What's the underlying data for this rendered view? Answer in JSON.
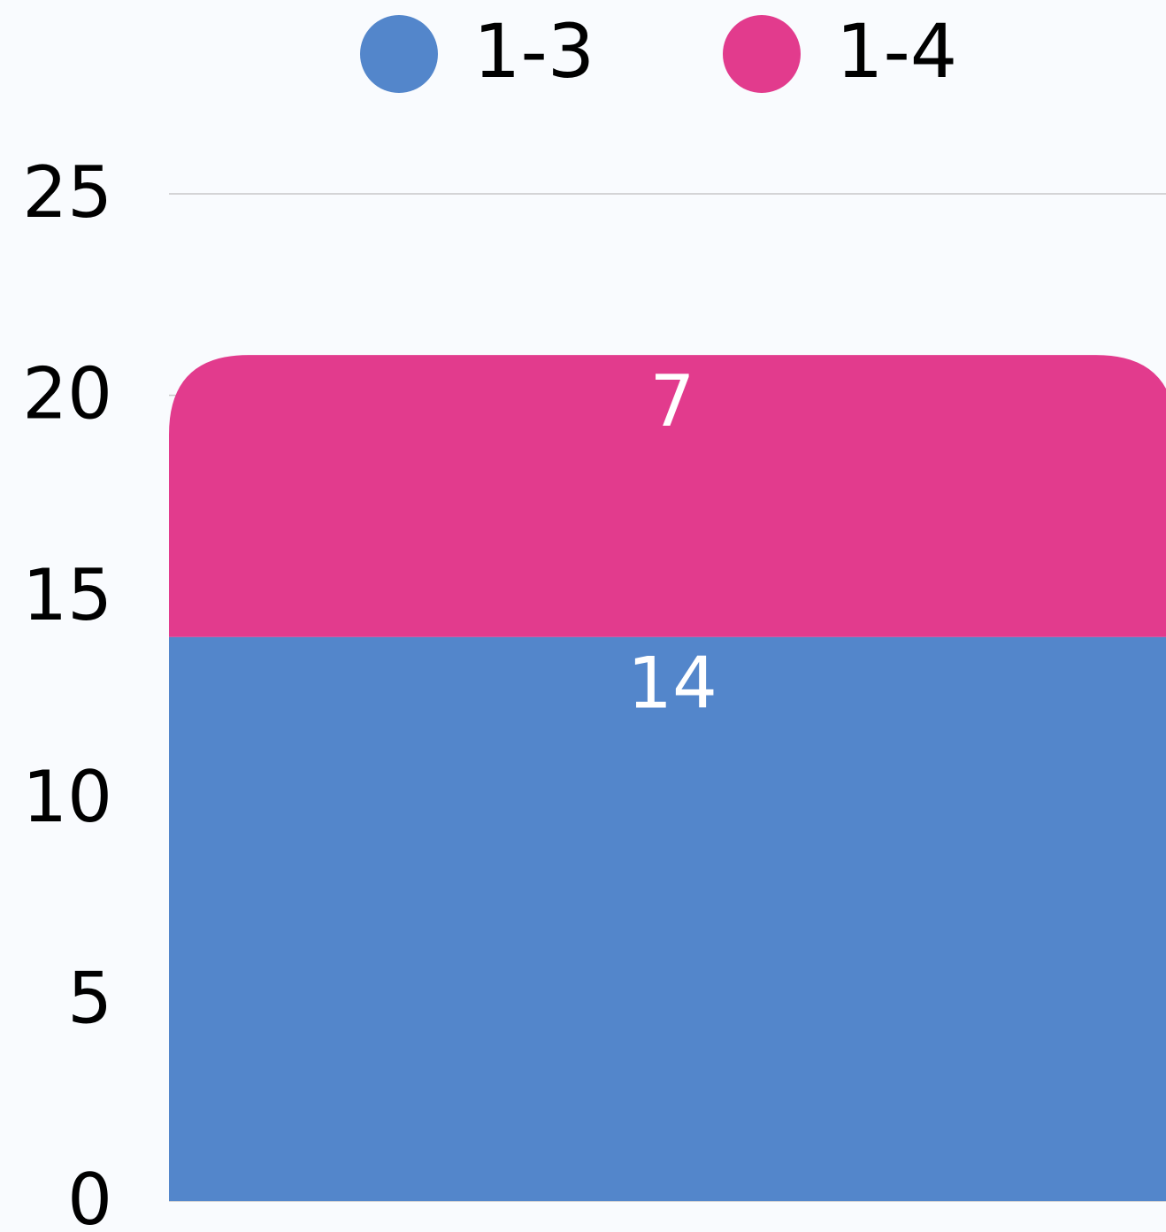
{
  "chart_data": {
    "type": "stacked_bar",
    "categories": [
      null
    ],
    "series": [
      {
        "name": "1-3",
        "color": "#5386cb",
        "values": [
          14
        ]
      },
      {
        "name": "1-4",
        "color": "#e23b8d",
        "values": [
          7
        ]
      }
    ],
    "ylim": [
      0,
      25
    ],
    "yticks": [
      0,
      5,
      10,
      15,
      20,
      25
    ],
    "grid": true,
    "legend": "top"
  }
}
